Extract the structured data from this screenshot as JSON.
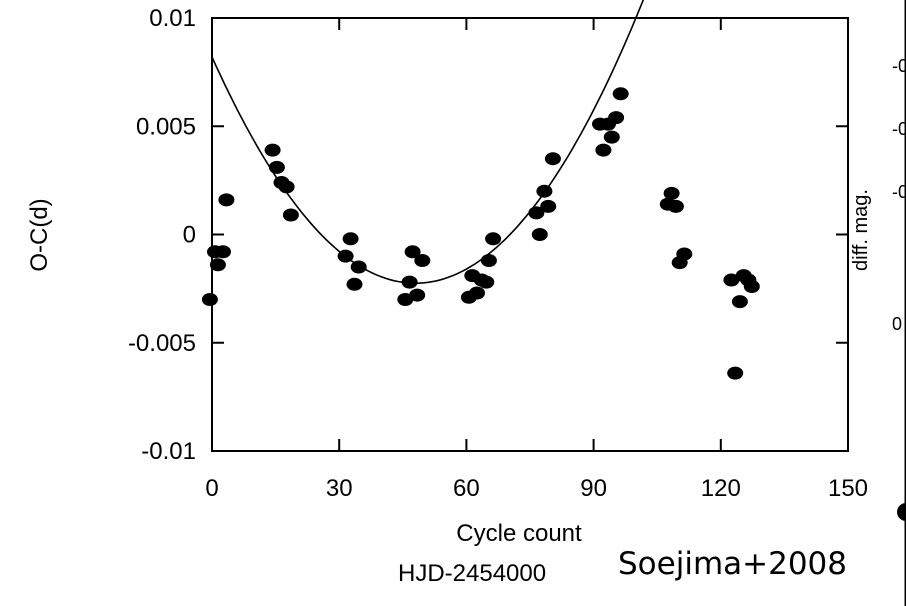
{
  "chart_data": {
    "type": "scatter",
    "title": "",
    "xlabel": "Cycle count",
    "ylabel": "O-C(d)",
    "xlim": [
      0,
      150
    ],
    "ylim": [
      -0.01,
      0.01
    ],
    "x_ticks": [
      0,
      30,
      60,
      90,
      120,
      150
    ],
    "x_tick_labels": [
      "0",
      "30",
      "60",
      "90",
      "120",
      "150"
    ],
    "y_ticks": [
      0.01,
      0.005,
      0,
      -0.005,
      -0.01
    ],
    "y_tick_labels": [
      "0.01",
      "0.005",
      "0",
      "-0.005",
      "-0.01"
    ],
    "grid": false,
    "legend": "none",
    "series": [
      {
        "mode": "markers",
        "points": [
          [
            -0.5,
            -0.003
          ],
          [
            0.7,
            -0.0008
          ],
          [
            1.4,
            -0.0014
          ],
          [
            2.6,
            -0.0008
          ],
          [
            3.4,
            0.0016
          ],
          [
            14.3,
            0.0039
          ],
          [
            15.3,
            0.0031
          ],
          [
            16.4,
            0.0024
          ],
          [
            17.6,
            0.0022
          ],
          [
            18.6,
            0.0009
          ],
          [
            31.5,
            -0.001
          ],
          [
            32.7,
            -0.0002
          ],
          [
            33.6,
            -0.0023
          ],
          [
            34.6,
            -0.0015
          ],
          [
            45.6,
            -0.003
          ],
          [
            46.6,
            -0.0022
          ],
          [
            47.3,
            -0.0008
          ],
          [
            48.4,
            -0.0028
          ],
          [
            49.6,
            -0.0012
          ],
          [
            60.6,
            -0.0029
          ],
          [
            61.4,
            -0.0019
          ],
          [
            62.5,
            -0.0027
          ],
          [
            63.6,
            -0.0021
          ],
          [
            64.7,
            -0.0022
          ],
          [
            65.3,
            -0.0012
          ],
          [
            66.3,
            -0.0002
          ],
          [
            76.5,
            0.001
          ],
          [
            77.3,
            0.0
          ],
          [
            78.4,
            0.002
          ],
          [
            79.3,
            0.0013
          ],
          [
            80.4,
            0.0035
          ],
          [
            91.5,
            0.0051
          ],
          [
            92.3,
            0.0039
          ],
          [
            93.4,
            0.0051
          ],
          [
            94.3,
            0.0045
          ],
          [
            95.3,
            0.0054
          ],
          [
            96.4,
            0.0065
          ],
          [
            107.5,
            0.0014
          ],
          [
            108.4,
            0.0019
          ],
          [
            109.4,
            0.0013
          ],
          [
            110.3,
            -0.0013
          ],
          [
            111.4,
            -0.0009
          ],
          [
            122.5,
            -0.0021
          ],
          [
            123.4,
            -0.0064
          ],
          [
            124.5,
            -0.0031
          ],
          [
            125.4,
            -0.0019
          ],
          [
            126.5,
            -0.0021
          ],
          [
            127.3,
            -0.0024
          ]
        ]
      },
      {
        "mode": "line",
        "quadratic_fit": {
          "vertex_x": 48,
          "vertex_y": -0.00225,
          "value_at_0": 0.0082
        },
        "x_range": [
          0,
          106
        ]
      }
    ]
  },
  "side_axis_label": "diff. mag.",
  "side_fragments": [
    "-0",
    "-0",
    "-0",
    "0"
  ],
  "xaxis_note": "HJD-2454000",
  "credit": "Soejima+2008"
}
